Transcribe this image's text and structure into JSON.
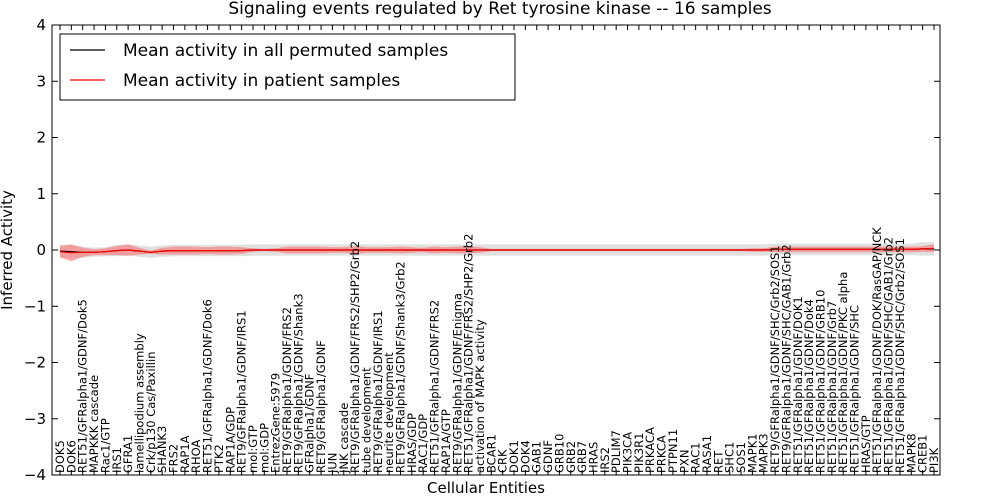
{
  "chart_data": {
    "type": "line",
    "title": "Signaling events regulated by Ret tyrosine kinase -- 16 samples",
    "xlabel": "Cellular Entities",
    "ylabel": "Inferred Activity",
    "ylim": [
      -4,
      4
    ],
    "yticks": [
      -4,
      -3,
      -2,
      -1,
      0,
      1,
      2,
      3,
      4
    ],
    "grid": false,
    "legend_position": "top-left",
    "categories": [
      "DOK5",
      "DOK6",
      "RET51/GFRalpha1/GDNF/Dok5",
      "MAPKKK cascade",
      "Rac1/GTP",
      "IRS1",
      "GFRA1",
      "lamellipodium assembly",
      "Crk/p130 Cas/Paxillin",
      "SHANK3",
      "FRS2",
      "RAP1A",
      "RHOA",
      "RET51/GFRalpha1/GDNF/Dok6",
      "PTK2",
      "RAP1A/GDP",
      "RET9/GFRalpha1/GDNF/IRS1",
      "mol:GTP",
      "mol:GDP",
      "EntrezGene:5979",
      "RET9/GFRalpha1/GDNF/FRS2",
      "RET9/GFRalpha1/GDNF/Shank3",
      "GFRalpha1/GDNF",
      "RET9/GFRalpha1/GDNF",
      "JUN",
      "JNK cascade",
      "RET9/GFRalpha1/GDNF/FRS2/SHP2/Grb2",
      "tube development",
      "RET9/GFRalpha1/GDNF/IRS1",
      "neurite development",
      "RET9/GFRalpha1/GDNF/Shank3/Grb2",
      "HRAS/GDP",
      "RAC1/GDP",
      "RET51/GFRalpha1/GDNF/FRS2",
      "RAP1A/GTP",
      "RET9/GFRalpha1/GDNF/Enigma",
      "RET51/GFRalpha1/GDNF/FRS2/SHP2/Grb2",
      "activation of MAPK activity",
      "BCAR1",
      "CRK",
      "DOK1",
      "DOK4",
      "GAB1",
      "GDNF",
      "GRB10",
      "GRB2",
      "GRB7",
      "HRAS",
      "IRS2",
      "PDLIM7",
      "PIK3CA",
      "PIK3R1",
      "PRKACA",
      "PRKCA",
      "PTPN11",
      "PXN",
      "RAC1",
      "RASA1",
      "RET",
      "SHC1",
      "SOS1",
      "MAPK1",
      "MAPK3",
      "RET9/GFRalpha1/GDNF/SHC/Grb2/SOS1",
      "RET9/GFRalpha1/GDNF/SHC/GAB1/Grb2",
      "RET51/GFRalpha1/GDNF/DOK1",
      "RET51/GFRalpha1/GDNF/Dok4",
      "RET51/GFRalpha1/GDNF/GRB10",
      "RET51/GFRalpha1/GDNF/Grb7",
      "RET51/GFRalpha1/GDNF/PKC alpha",
      "RET51/GFRalpha1/GDNF/SHC",
      "HRAS/GTP",
      "RET51/GFRalpha1/GDNF/DOK/RasGAP/NCK",
      "RET51/GFRalpha1/GDNF/SHC/GAB1/Grb2",
      "RET51/GFRalpha1/GDNF/SHC/Grb2/SOS1",
      "MAPK8",
      "CREB1",
      "PI3K"
    ],
    "series": [
      {
        "name": "Mean activity in all permuted samples",
        "color": "#000000",
        "values": [
          -0.02,
          -0.03,
          -0.04,
          -0.04,
          -0.03,
          -0.01,
          0.0,
          -0.02,
          -0.04,
          -0.02,
          -0.01,
          -0.01,
          -0.01,
          -0.01,
          -0.01,
          -0.01,
          -0.01,
          0.0,
          0.0,
          0.0,
          0.0,
          0.0,
          0.0,
          0.0,
          0.0,
          0.0,
          0.0,
          0.0,
          0.0,
          0.0,
          0.0,
          0.0,
          0.0,
          0.0,
          0.0,
          0.0,
          0.0,
          0.0,
          0.0,
          0.0,
          0.0,
          0.0,
          0.0,
          0.0,
          0.0,
          0.0,
          0.0,
          0.0,
          0.0,
          0.0,
          0.0,
          0.0,
          0.0,
          0.0,
          0.0,
          0.0,
          0.0,
          0.0,
          0.0,
          0.0,
          0.0,
          0.0,
          0.0,
          0.01,
          0.01,
          0.01,
          0.01,
          0.01,
          0.01,
          0.01,
          0.01,
          0.01,
          0.01,
          0.01,
          0.01,
          0.01,
          0.02,
          0.02
        ]
      },
      {
        "name": "Mean activity in patient samples",
        "color": "#ff0000",
        "values": [
          -0.03,
          -0.05,
          -0.04,
          -0.04,
          -0.03,
          -0.01,
          0.0,
          -0.02,
          -0.04,
          -0.02,
          -0.01,
          -0.01,
          -0.01,
          -0.01,
          -0.01,
          -0.01,
          -0.01,
          0.0,
          0.0,
          0.0,
          0.0,
          0.0,
          0.0,
          0.0,
          0.0,
          0.0,
          0.0,
          0.0,
          0.0,
          0.0,
          0.0,
          0.0,
          0.0,
          0.0,
          0.0,
          0.0,
          0.0,
          0.0,
          0.0,
          0.0,
          0.0,
          0.0,
          0.0,
          0.0,
          0.0,
          0.0,
          0.0,
          0.0,
          0.0,
          0.0,
          0.0,
          0.0,
          0.0,
          0.0,
          0.0,
          0.0,
          0.0,
          0.0,
          0.0,
          0.0,
          0.0,
          0.0,
          0.0,
          0.01,
          0.01,
          0.01,
          0.01,
          0.01,
          0.01,
          0.01,
          0.01,
          0.01,
          0.01,
          0.01,
          0.01,
          0.01,
          0.02,
          0.03
        ]
      }
    ],
    "bands": [
      {
        "name": "permuted spread",
        "color": "#bbbbbb",
        "values": [
          0.12,
          0.12,
          0.1,
          0.08,
          0.08,
          0.1,
          0.1,
          0.1,
          0.1,
          0.1,
          0.1,
          0.1,
          0.1,
          0.1,
          0.1,
          0.1,
          0.1,
          0.1,
          0.1,
          0.1,
          0.1,
          0.1,
          0.1,
          0.1,
          0.1,
          0.1,
          0.1,
          0.1,
          0.1,
          0.1,
          0.1,
          0.1,
          0.1,
          0.1,
          0.1,
          0.1,
          0.1,
          0.1,
          0.1,
          0.1,
          0.1,
          0.1,
          0.1,
          0.1,
          0.1,
          0.1,
          0.1,
          0.1,
          0.1,
          0.1,
          0.1,
          0.1,
          0.1,
          0.1,
          0.1,
          0.1,
          0.1,
          0.1,
          0.1,
          0.1,
          0.1,
          0.1,
          0.1,
          0.1,
          0.1,
          0.1,
          0.1,
          0.1,
          0.1,
          0.1,
          0.1,
          0.1,
          0.1,
          0.1,
          0.1,
          0.1,
          0.12,
          0.12
        ]
      },
      {
        "name": "patient spread",
        "color": "#ff6666",
        "values": [
          0.1,
          0.15,
          0.08,
          0.05,
          0.06,
          0.08,
          0.1,
          0.06,
          0.03,
          0.06,
          0.07,
          0.07,
          0.07,
          0.06,
          0.07,
          0.07,
          0.06,
          0.03,
          0.02,
          0.03,
          0.06,
          0.06,
          0.06,
          0.06,
          0.05,
          0.05,
          0.07,
          0.05,
          0.05,
          0.05,
          0.06,
          0.05,
          0.04,
          0.06,
          0.05,
          0.06,
          0.06,
          0.05,
          0.02,
          0.02,
          0.02,
          0.02,
          0.02,
          0.02,
          0.02,
          0.02,
          0.02,
          0.02,
          0.02,
          0.02,
          0.02,
          0.02,
          0.02,
          0.02,
          0.02,
          0.02,
          0.02,
          0.02,
          0.02,
          0.02,
          0.02,
          0.03,
          0.03,
          0.05,
          0.05,
          0.05,
          0.05,
          0.05,
          0.05,
          0.05,
          0.05,
          0.05,
          0.05,
          0.05,
          0.05,
          0.05,
          0.05,
          0.07
        ]
      }
    ]
  }
}
